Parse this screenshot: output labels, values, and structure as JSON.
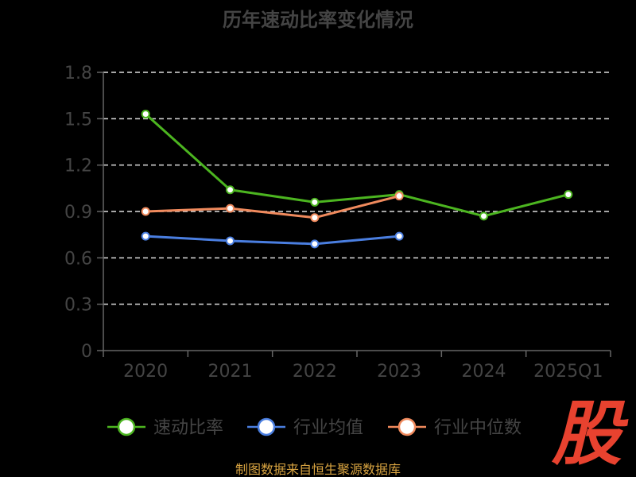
{
  "chart_data": {
    "type": "line",
    "title": "历年速动比率变化情况",
    "xlabel": "",
    "ylabel": "",
    "categories": [
      "2020",
      "2021",
      "2022",
      "2023",
      "2024",
      "2025Q1"
    ],
    "ylim": [
      0,
      1.8
    ],
    "yticks": [
      "0",
      "0.3",
      "0.6",
      "0.9",
      "1.2",
      "1.5",
      "1.8"
    ],
    "grid": true,
    "legend_position": "bottom",
    "series": [
      {
        "name": "速动比率",
        "color": "#4cb520",
        "values": [
          1.53,
          1.04,
          0.96,
          1.01,
          0.87,
          1.01
        ]
      },
      {
        "name": "行业均值",
        "color": "#4a7ee0",
        "values": [
          0.74,
          0.71,
          0.69,
          0.74,
          null,
          null
        ]
      },
      {
        "name": "行业中位数",
        "color": "#f08a5d",
        "values": [
          0.9,
          0.92,
          0.86,
          1.0,
          null,
          null
        ]
      }
    ]
  },
  "colors": {
    "background": "#000000",
    "axis": "#666666",
    "grid": "#dddddd",
    "tick_label": "#444444",
    "title": "#444444",
    "source": "#d9a441",
    "logo": "#e8422f"
  },
  "source_text": "制图数据来自恒生聚源数据库",
  "logo_text": "股"
}
